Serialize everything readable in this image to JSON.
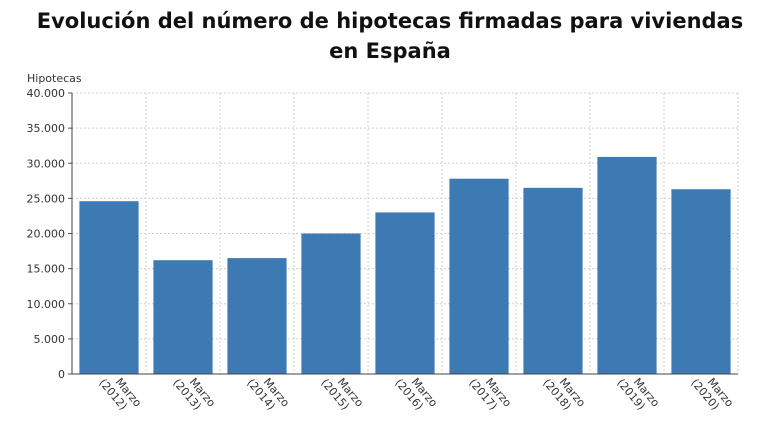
{
  "chart_data": {
    "type": "bar",
    "title": "Evolución del número de hipotecas firmadas para viviendas en España",
    "ylabel": "Hipotecas",
    "xlabel": "",
    "ylim": [
      0,
      40000
    ],
    "yticks": [
      "0",
      "5.000",
      "10.000",
      "15.000",
      "20.000",
      "25.000",
      "30.000",
      "35.000",
      "40.000"
    ],
    "ytick_values": [
      0,
      5000,
      10000,
      15000,
      20000,
      25000,
      30000,
      35000,
      40000
    ],
    "categories": [
      {
        "line1": "Marzo",
        "line2": "(2012)"
      },
      {
        "line1": "Marzo",
        "line2": "(2013)"
      },
      {
        "line1": "Marzo",
        "line2": "(2014)"
      },
      {
        "line1": "Marzo",
        "line2": "(2015)"
      },
      {
        "line1": "Marzo",
        "line2": "(2016)"
      },
      {
        "line1": "Marzo",
        "line2": "(2017)"
      },
      {
        "line1": "Marzo",
        "line2": "(2018)"
      },
      {
        "line1": "Marzo",
        "line2": "(2019)"
      },
      {
        "line1": "Marzo",
        "line2": "(2020)"
      }
    ],
    "values": [
      24600,
      16200,
      16500,
      20000,
      23000,
      27800,
      26500,
      30900,
      26300
    ],
    "grid": true,
    "bar_color": "#3d7ab4",
    "grid_color": "#cfcfcf"
  }
}
